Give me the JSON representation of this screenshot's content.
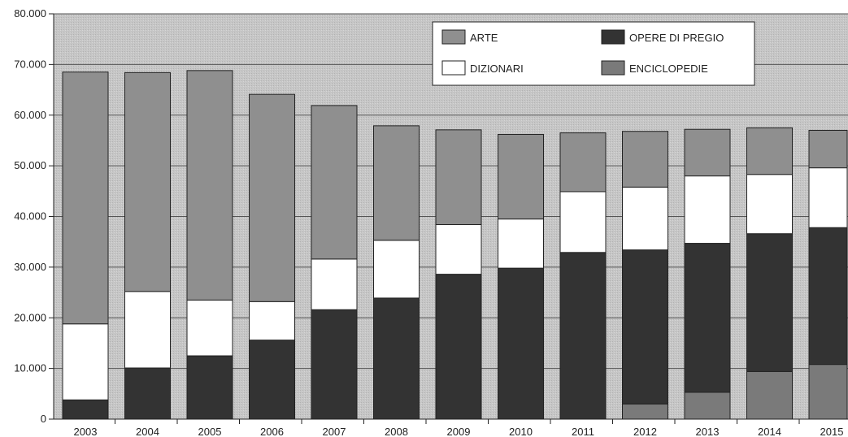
{
  "chart_data": {
    "type": "bar",
    "stacked": true,
    "categories": [
      "2003",
      "2004",
      "2005",
      "2006",
      "2007",
      "2008",
      "2009",
      "2010",
      "2011",
      "2012",
      "2013",
      "2014",
      "2015"
    ],
    "series": [
      {
        "name": "ENCICLOPEDIE",
        "color": "#7a7a7a",
        "values": [
          0,
          0,
          0,
          0,
          0,
          0,
          0,
          0,
          0,
          3000,
          5300,
          9400,
          10800
        ]
      },
      {
        "name": "OPERE DI PREGIO",
        "color": "#333333",
        "values": [
          3800,
          10100,
          12500,
          15600,
          21600,
          23900,
          28600,
          29800,
          32900,
          30400,
          29400,
          27200,
          27000
        ]
      },
      {
        "name": "DIZIONARI",
        "color": "#ffffff",
        "values": [
          15000,
          15100,
          11000,
          7600,
          10000,
          11400,
          9800,
          9700,
          12000,
          12400,
          13300,
          11700,
          11800
        ]
      },
      {
        "name": "ARTE",
        "color": "#8f8f8f",
        "values": [
          49700,
          43200,
          45300,
          40900,
          30300,
          22600,
          18700,
          16700,
          11600,
          11000,
          9200,
          9200,
          7400
        ]
      }
    ],
    "ylim": [
      0,
      80000
    ],
    "yticks": [
      "0",
      "10.000",
      "20.000",
      "30.000",
      "40.000",
      "50.000",
      "60.000",
      "70.000",
      "80.000"
    ],
    "ytick_values": [
      0,
      10000,
      20000,
      30000,
      40000,
      50000,
      60000,
      70000,
      80000
    ],
    "grid": true,
    "legend": {
      "placement": "top-right",
      "order": [
        "ARTE",
        "OPERE DI PREGIO",
        "DIZIONARI",
        "ENCICLOPEDIE"
      ]
    },
    "plot_background": "#c4c4c4"
  }
}
